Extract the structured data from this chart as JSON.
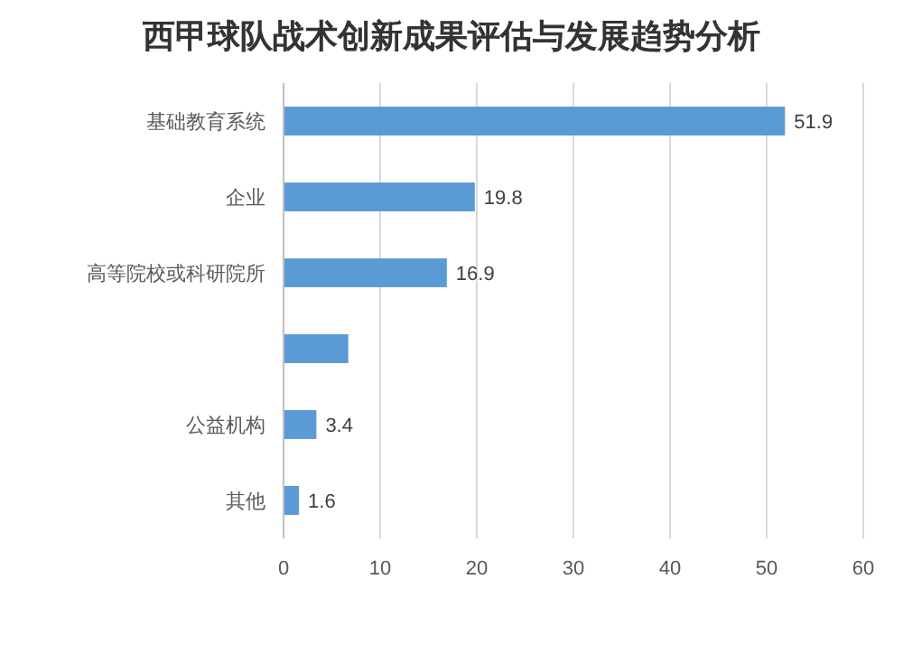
{
  "chart_data": {
    "type": "bar",
    "orientation": "horizontal",
    "title": "西甲球队战术创新成果评估与发展趋势分析",
    "categories": [
      "基础教育系统",
      "企业",
      "高等院校或科研院所",
      null,
      "公益机构",
      "其他"
    ],
    "values": [
      51.9,
      19.8,
      16.9,
      6.7,
      3.4,
      1.6
    ],
    "value_labels": [
      "51.9",
      "19.8",
      "16.9",
      null,
      "3.4",
      "1.6"
    ],
    "color": "#5b9bd5",
    "xlim": [
      0,
      60
    ],
    "xticks": [
      0,
      10,
      20,
      30,
      40,
      50,
      60
    ],
    "grid": "x"
  }
}
